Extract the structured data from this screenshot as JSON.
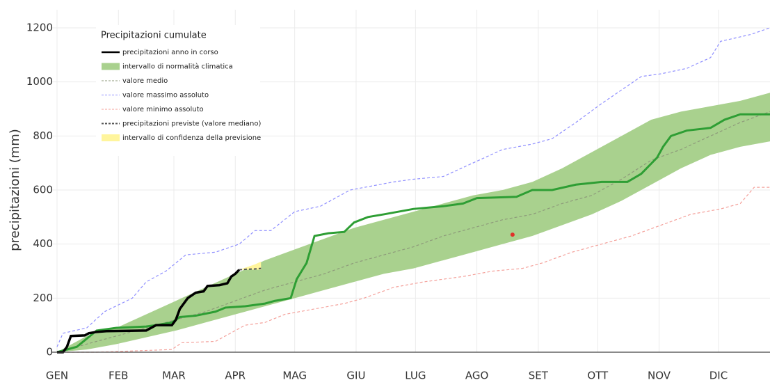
{
  "chart_data": {
    "type": "line",
    "legend_title": "Precipitazioni cumulate",
    "ylabel": "precipitazioni (mm)",
    "xlim": [
      0,
      360
    ],
    "ylim": [
      0,
      1200
    ],
    "yticks": [
      0,
      200,
      400,
      600,
      800,
      1000,
      1200
    ],
    "xticks": [
      {
        "value": 0,
        "label": "GEN"
      },
      {
        "value": 31,
        "label": "FEB"
      },
      {
        "value": 59,
        "label": "MAR"
      },
      {
        "value": 90,
        "label": "APR"
      },
      {
        "value": 120,
        "label": "MAG"
      },
      {
        "value": 151,
        "label": "GIU"
      },
      {
        "value": 181,
        "label": "LUG"
      },
      {
        "value": 212,
        "label": "AGO"
      },
      {
        "value": 243,
        "label": "SET"
      },
      {
        "value": 273,
        "label": "OTT"
      },
      {
        "value": 304,
        "label": "NOV"
      },
      {
        "value": 334,
        "label": "DIC"
      }
    ],
    "grid": true,
    "legend": "upper left",
    "series": [
      {
        "kind": "band",
        "name": "intervallo di normalità climatica",
        "color": "#a9d18e",
        "x": [
          0,
          15,
          30,
          45,
          60,
          75,
          90,
          105,
          120,
          135,
          150,
          165,
          180,
          195,
          210,
          225,
          240,
          255,
          270,
          285,
          300,
          315,
          330,
          345,
          360
        ],
        "lower": [
          0,
          10,
          30,
          55,
          80,
          110,
          140,
          170,
          200,
          230,
          260,
          290,
          310,
          340,
          370,
          400,
          430,
          470,
          510,
          560,
          620,
          680,
          730,
          760,
          780
        ],
        "upper": [
          0,
          60,
          90,
          140,
          190,
          240,
          290,
          340,
          380,
          420,
          460,
          490,
          520,
          550,
          580,
          600,
          630,
          680,
          740,
          800,
          860,
          890,
          910,
          930,
          960
        ]
      },
      {
        "kind": "band",
        "name": "intervallo di confidenza della previsione",
        "color": "#fff59d",
        "x": [
          92,
          96,
          100,
          103
        ],
        "lower": [
          305,
          305,
          305,
          305
        ],
        "upper": [
          305,
          315,
          325,
          335
        ]
      },
      {
        "kind": "line",
        "name": "valore medio",
        "color": "#8d9a7a",
        "dash": true,
        "x": [
          0,
          15,
          30,
          45,
          60,
          75,
          90,
          105,
          120,
          135,
          150,
          165,
          180,
          195,
          210,
          225,
          240,
          255,
          270,
          285,
          300,
          315,
          330,
          345,
          360
        ],
        "values": [
          0,
          30,
          60,
          90,
          120,
          150,
          190,
          230,
          260,
          290,
          330,
          360,
          390,
          430,
          460,
          490,
          510,
          550,
          580,
          640,
          710,
          750,
          800,
          850,
          890
        ]
      },
      {
        "kind": "line",
        "name": "valore massimo assoluto",
        "color": "#8f8fff",
        "dash": true,
        "x": [
          0,
          3,
          15,
          24,
          38,
          45,
          55,
          65,
          80,
          92,
          100,
          108,
          120,
          133,
          148,
          170,
          180,
          195,
          210,
          225,
          240,
          250,
          262,
          275,
          285,
          295,
          305,
          318,
          330,
          335,
          350,
          360
        ],
        "values": [
          20,
          70,
          90,
          150,
          200,
          260,
          300,
          360,
          370,
          400,
          450,
          450,
          520,
          540,
          600,
          630,
          640,
          650,
          700,
          750,
          770,
          790,
          850,
          920,
          970,
          1020,
          1030,
          1050,
          1090,
          1150,
          1175,
          1200
        ]
      },
      {
        "kind": "line",
        "name": "valore minimo assoluto",
        "color": "#f4a09a",
        "dash": true,
        "x": [
          0,
          20,
          40,
          58,
          63,
          80,
          85,
          95,
          105,
          115,
          130,
          145,
          155,
          170,
          185,
          205,
          220,
          235,
          245,
          260,
          275,
          290,
          305,
          320,
          335,
          345,
          352,
          360
        ],
        "values": [
          0,
          0,
          5,
          10,
          35,
          40,
          60,
          100,
          110,
          140,
          160,
          180,
          200,
          240,
          260,
          280,
          300,
          310,
          330,
          370,
          400,
          430,
          470,
          510,
          530,
          550,
          610,
          610
        ]
      },
      {
        "kind": "line",
        "color": "#2e9e34",
        "width": 3,
        "x": [
          0,
          5,
          10,
          15,
          20,
          30,
          45,
          50,
          58,
          62,
          70,
          80,
          85,
          95,
          105,
          110,
          118,
          121,
          126,
          130,
          137,
          145,
          150,
          157,
          165,
          180,
          195,
          205,
          212,
          232,
          240,
          250,
          262,
          275,
          288,
          295,
          303,
          306,
          310,
          318,
          330,
          337,
          345,
          360
        ],
        "values": [
          0,
          10,
          20,
          50,
          80,
          90,
          95,
          100,
          110,
          130,
          135,
          150,
          165,
          170,
          180,
          190,
          200,
          270,
          330,
          430,
          440,
          445,
          480,
          500,
          510,
          530,
          540,
          550,
          570,
          575,
          600,
          600,
          620,
          630,
          630,
          660,
          720,
          760,
          800,
          820,
          830,
          860,
          880,
          880
        ]
      },
      {
        "kind": "line",
        "name": "precipitazioni anno in corso",
        "color": "#000000",
        "width": 3.5,
        "x": [
          0,
          3,
          5,
          7,
          14,
          16,
          20,
          25,
          45,
          50,
          58,
          60,
          62,
          66,
          70,
          74,
          76,
          82,
          86,
          88,
          90,
          92
        ],
        "values": [
          0,
          0,
          20,
          60,
          62,
          70,
          75,
          78,
          80,
          100,
          100,
          120,
          160,
          200,
          220,
          225,
          245,
          248,
          255,
          280,
          290,
          305
        ]
      },
      {
        "kind": "line",
        "name": "precipitazioni previste (valore mediano)",
        "color": "#555555",
        "dash": true,
        "width": 2,
        "x": [
          92,
          96,
          100,
          103
        ],
        "values": [
          305,
          307,
          308,
          310
        ]
      },
      {
        "kind": "point",
        "color": "#e0302a",
        "x": [
          230
        ],
        "values": [
          435
        ]
      }
    ]
  }
}
